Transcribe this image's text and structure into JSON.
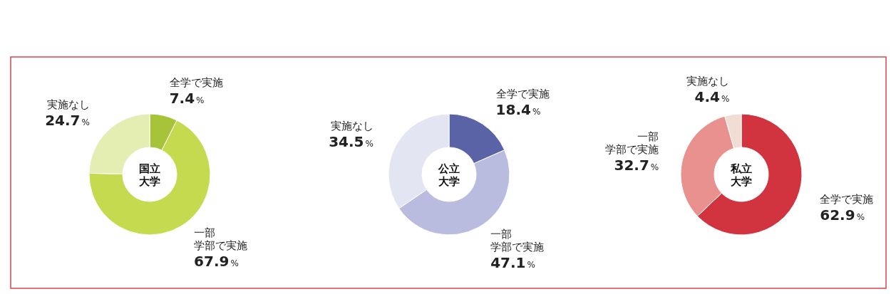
{
  "chart_data": [
    {
      "type": "donut",
      "title": "国立大学",
      "categories": [
        "全学で実施",
        "一部学部で実施",
        "実施なし"
      ],
      "values": [
        7.4,
        67.9,
        24.7
      ],
      "colors": [
        "#a7c33a",
        "#c6da4f",
        "#e4edb2"
      ],
      "value_labels": [
        "7.4%",
        "67.9%",
        "24.7%"
      ]
    },
    {
      "type": "donut",
      "title": "公立大学",
      "categories": [
        "全学で実施",
        "一部学部で実施",
        "実施なし"
      ],
      "values": [
        18.4,
        47.1,
        34.5
      ],
      "colors": [
        "#5a63a6",
        "#b9bcdf",
        "#e4e5f3"
      ],
      "value_labels": [
        "18.4%",
        "47.1%",
        "34.5%"
      ]
    },
    {
      "type": "donut",
      "title": "私立大学",
      "categories": [
        "全学で実施",
        "一部学部で実施",
        "実施なし"
      ],
      "values": [
        62.9,
        32.7,
        4.4
      ],
      "colors": [
        "#d1343e",
        "#e8918f",
        "#f2ddd5"
      ],
      "value_labels": [
        "62.9%",
        "32.7%",
        "4.4%"
      ]
    }
  ]
}
